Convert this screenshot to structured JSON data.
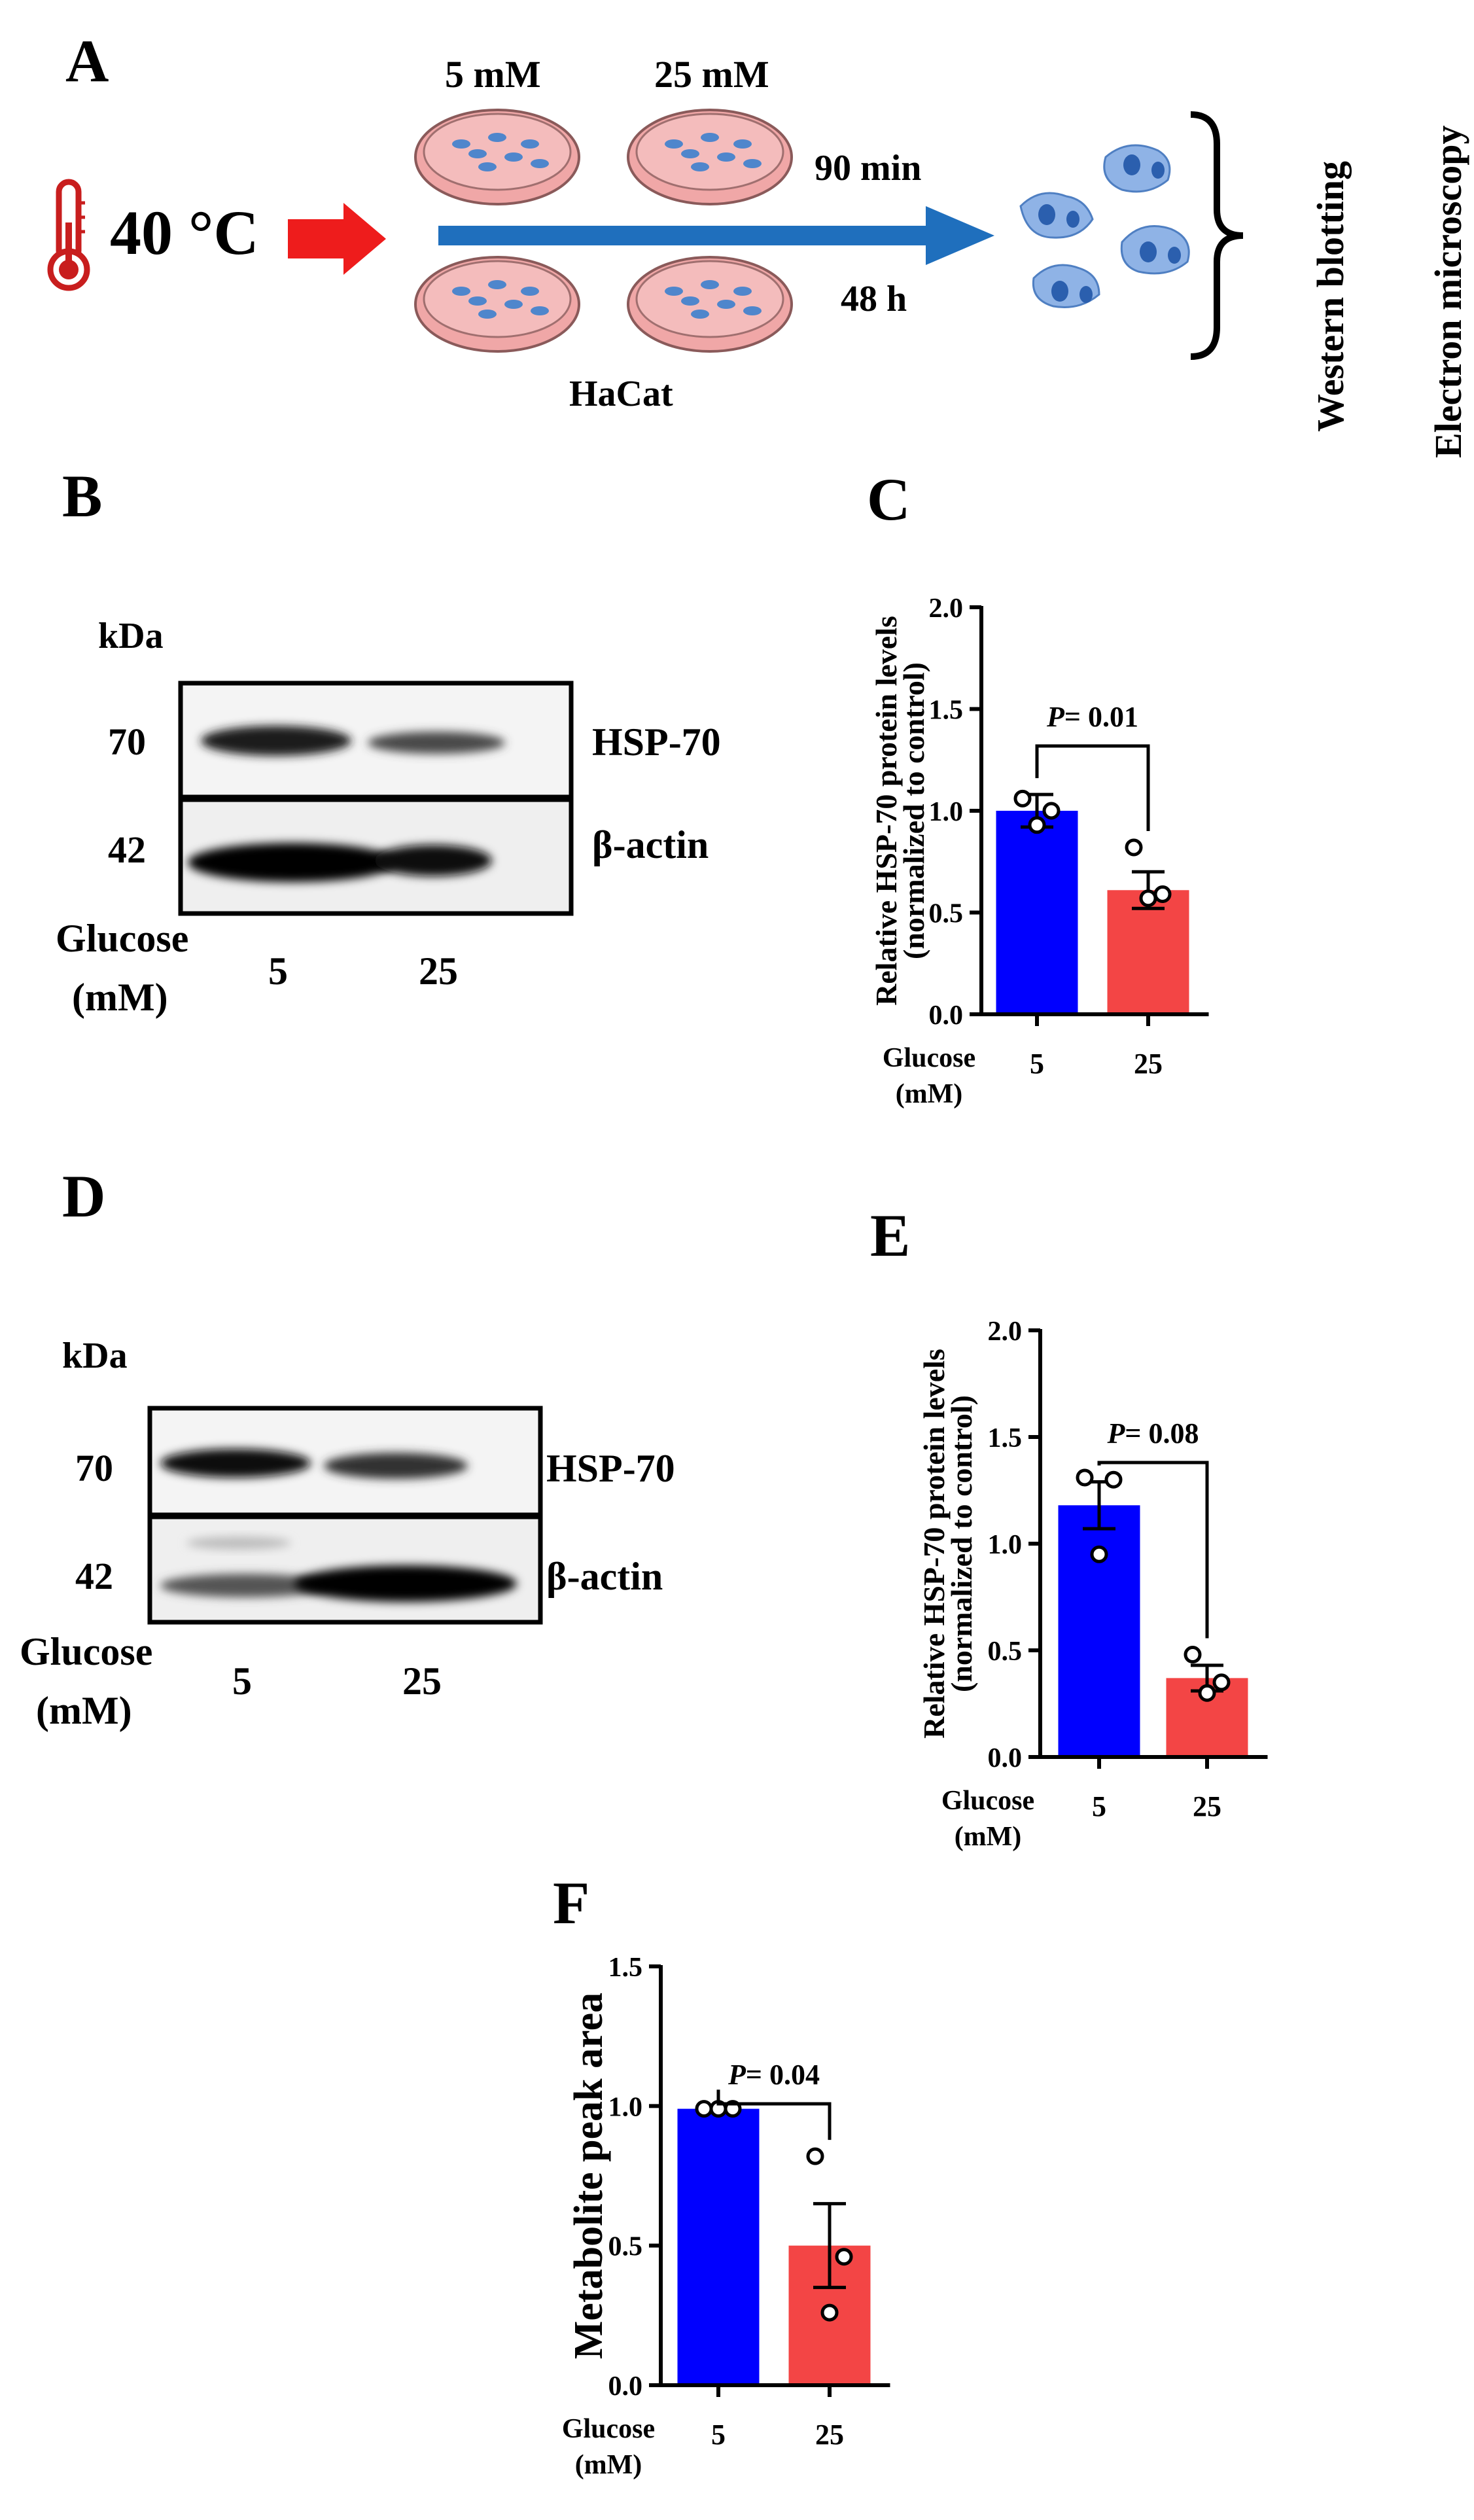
{
  "panelA": {
    "letter": "A",
    "temperature": "40 °C",
    "conc_5": "5 mM",
    "conc_25": "25 mM",
    "time_short": "90 min",
    "time_long": "48 h",
    "cell_line": "HaCat",
    "assay_1": "Western blotting",
    "assay_2": "Electron microscopy",
    "colors": {
      "arrow_red": "#ee1c1c",
      "arrow_blue": "#1f6fbd",
      "dish_pink": "#f0a7a7",
      "cell_blue": "#4f86cc"
    }
  },
  "panelB": {
    "letter": "B",
    "kda": "kDa",
    "mw_top": "70",
    "mw_bottom": "42",
    "band_top": "HSP-70",
    "band_bottom": "β-actin",
    "glucose": "Glucose",
    "unit": "(mM)",
    "lane_1": "5",
    "lane_2": "25"
  },
  "panelD": {
    "letter": "D",
    "kda": "kDa",
    "mw_top": "70",
    "mw_bottom": "42",
    "band_top": "HSP-70",
    "band_bottom": "β-actin",
    "glucose": "Glucose",
    "unit": "(mM)",
    "lane_1": "5",
    "lane_2": "25"
  },
  "panelC": {
    "letter": "C"
  },
  "panelE": {
    "letter": "E"
  },
  "panelF": {
    "letter": "F"
  },
  "chart_data": [
    {
      "id": "C",
      "type": "bar",
      "categories": [
        "5",
        "25"
      ],
      "values": [
        1.0,
        0.61
      ],
      "errors": [
        0.08,
        0.09
      ],
      "points": [
        [
          1.06,
          1.0,
          0.93
        ],
        [
          0.82,
          0.59,
          0.57
        ]
      ],
      "ylabel_line1": "Relative HSP-70 protein levels",
      "ylabel_line2": "(normalized to control)",
      "xlabel_line1": "Glucose",
      "xlabel_line2": "(mM)",
      "ylim": [
        0,
        2.0
      ],
      "yticks": [
        "0.0",
        "0.5",
        "1.0",
        "1.5",
        "2.0"
      ],
      "pvalue_prefix": "P",
      "pvalue_text": "= 0.01",
      "colors": [
        "#0000ff",
        "#f34545"
      ]
    },
    {
      "id": "E",
      "type": "bar",
      "categories": [
        "5",
        "25"
      ],
      "values": [
        1.18,
        0.37
      ],
      "errors": [
        0.11,
        0.06
      ],
      "points": [
        [
          1.31,
          1.3,
          0.95
        ],
        [
          0.48,
          0.35,
          0.3
        ]
      ],
      "ylabel_line1": "Relative HSP-70 protein levels",
      "ylabel_line2": "(normalized to control)",
      "xlabel_line1": "Glucose",
      "xlabel_line2": "(mM)",
      "ylim": [
        0,
        2.0
      ],
      "yticks": [
        "0.0",
        "0.5",
        "1.0",
        "1.5",
        "2.0"
      ],
      "pvalue_prefix": "P",
      "pvalue_text": "= 0.08",
      "colors": [
        "#0000ff",
        "#f34545"
      ]
    },
    {
      "id": "F",
      "type": "bar",
      "categories": [
        "5",
        "25"
      ],
      "values": [
        0.99,
        0.5
      ],
      "errors": [
        0.01,
        0.15
      ],
      "points": [
        [
          0.99,
          0.99,
          0.99
        ],
        [
          0.82,
          0.46,
          0.26
        ]
      ],
      "ylabel_line1": "Metabolite peak area",
      "ylabel_line2": "",
      "xlabel_line1": "Glucose",
      "xlabel_line2": "(mM)",
      "ylim": [
        0,
        1.5
      ],
      "yticks": [
        "0.0",
        "0.5",
        "1.0",
        "1.5"
      ],
      "pvalue_prefix": "P",
      "pvalue_text": "= 0.04",
      "colors": [
        "#0000ff",
        "#f34545"
      ]
    }
  ]
}
